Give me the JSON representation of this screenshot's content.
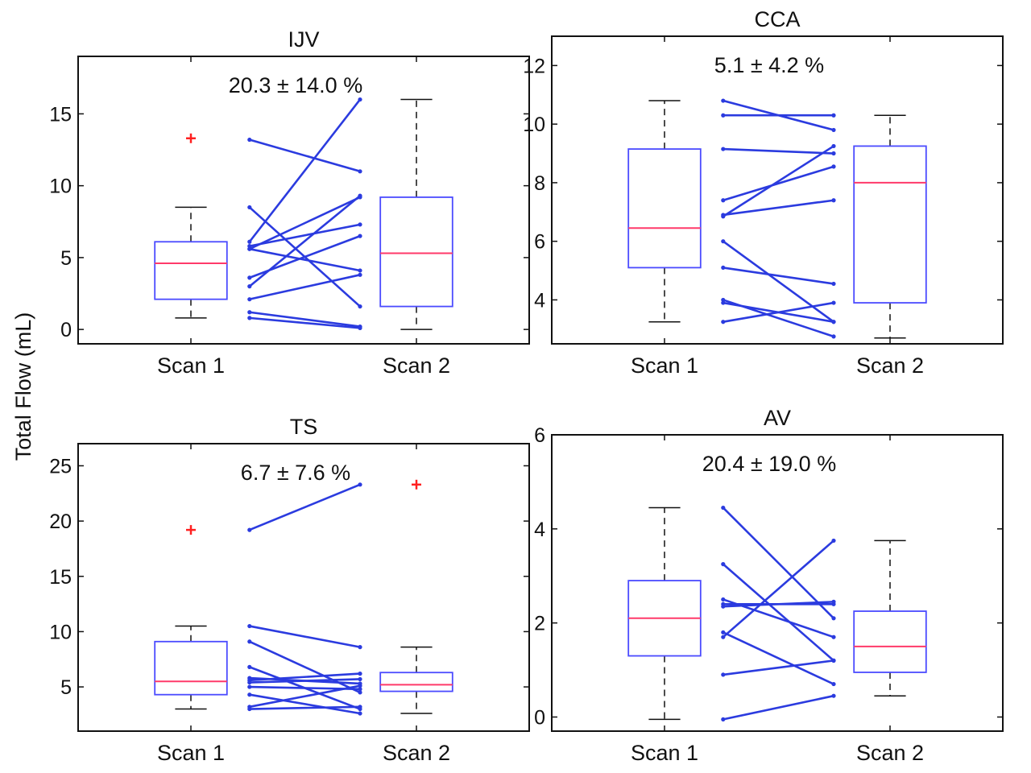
{
  "figure": {
    "ylabel": "Total Flow (mL)"
  },
  "colors": {
    "box": "#4b4bff",
    "median": "#ff3a6a",
    "outlier": "#ff2020",
    "pair_line": "#2b3bdf",
    "whisker": "#111111",
    "axis": "#111111"
  },
  "chart_data": [
    {
      "type": "box",
      "title": "IJV",
      "annotation": "20.3 ± 14.0 %",
      "categories": [
        "Scan 1",
        "Scan 2"
      ],
      "ylim": [
        -1,
        19
      ],
      "yticks": [
        0,
        5,
        10,
        15
      ],
      "boxes": [
        {
          "name": "Scan 1",
          "whisker_low": 0.8,
          "q1": 2.1,
          "median": 4.6,
          "q3": 6.1,
          "whisker_high": 8.5,
          "outliers": [
            13.3
          ]
        },
        {
          "name": "Scan 2",
          "whisker_low": 0.0,
          "q1": 1.6,
          "median": 5.3,
          "q3": 9.2,
          "whisker_high": 16.0,
          "outliers": []
        }
      ],
      "pairs": [
        [
          13.2,
          11.0
        ],
        [
          8.5,
          1.6
        ],
        [
          6.1,
          16.0
        ],
        [
          5.8,
          7.3
        ],
        [
          5.6,
          9.2
        ],
        [
          5.6,
          4.1
        ],
        [
          3.6,
          6.5
        ],
        [
          3.0,
          9.3
        ],
        [
          2.1,
          3.8
        ],
        [
          1.2,
          0.2
        ],
        [
          0.8,
          0.1
        ]
      ]
    },
    {
      "type": "box",
      "title": "CCA",
      "annotation": "5.1 ± 4.2 %",
      "categories": [
        "Scan 1",
        "Scan 2"
      ],
      "ylim": [
        2.5,
        13
      ],
      "yticks": [
        4,
        6,
        8,
        10,
        12
      ],
      "boxes": [
        {
          "name": "Scan 1",
          "whisker_low": 3.25,
          "q1": 5.1,
          "median": 6.45,
          "q3": 9.15,
          "whisker_high": 10.8,
          "outliers": []
        },
        {
          "name": "Scan 2",
          "whisker_low": 2.7,
          "q1": 3.9,
          "median": 8.0,
          "q3": 9.25,
          "whisker_high": 10.3,
          "outliers": []
        }
      ],
      "pairs": [
        [
          10.8,
          9.8
        ],
        [
          10.3,
          10.3
        ],
        [
          9.15,
          9.0
        ],
        [
          7.4,
          8.55
        ],
        [
          6.9,
          7.4
        ],
        [
          6.85,
          9.25
        ],
        [
          6.0,
          3.25
        ],
        [
          5.1,
          4.55
        ],
        [
          4.0,
          2.75
        ],
        [
          3.9,
          3.25
        ],
        [
          3.25,
          3.9
        ]
      ]
    },
    {
      "type": "box",
      "title": "TS",
      "annotation": "6.7 ± 7.6 %",
      "categories": [
        "Scan 1",
        "Scan 2"
      ],
      "ylim": [
        1,
        27
      ],
      "yticks": [
        5,
        10,
        15,
        20,
        25
      ],
      "boxes": [
        {
          "name": "Scan 1",
          "whisker_low": 3.0,
          "q1": 4.3,
          "median": 5.5,
          "q3": 9.1,
          "whisker_high": 10.5,
          "outliers": [
            19.2
          ]
        },
        {
          "name": "Scan 2",
          "whisker_low": 2.6,
          "q1": 4.6,
          "median": 5.2,
          "q3": 6.3,
          "whisker_high": 8.6,
          "outliers": [
            23.3
          ]
        }
      ],
      "pairs": [
        [
          19.2,
          23.3
        ],
        [
          10.5,
          8.6
        ],
        [
          9.1,
          4.5
        ],
        [
          6.8,
          3.0
        ],
        [
          5.8,
          5.3
        ],
        [
          5.6,
          6.2
        ],
        [
          5.4,
          5.7
        ],
        [
          5.0,
          4.8
        ],
        [
          4.3,
          2.6
        ],
        [
          3.2,
          5.1
        ],
        [
          3.0,
          3.2
        ]
      ]
    },
    {
      "type": "box",
      "title": "AV",
      "annotation": "20.4 ± 19.0 %",
      "categories": [
        "Scan 1",
        "Scan 2"
      ],
      "ylim": [
        -0.3,
        6
      ],
      "yticks": [
        0,
        2,
        4,
        6
      ],
      "boxes": [
        {
          "name": "Scan 1",
          "whisker_low": -0.05,
          "q1": 1.3,
          "median": 2.1,
          "q3": 2.9,
          "whisker_high": 4.45,
          "outliers": []
        },
        {
          "name": "Scan 2",
          "whisker_low": 0.45,
          "q1": 0.95,
          "median": 1.5,
          "q3": 2.25,
          "whisker_high": 3.75,
          "outliers": []
        }
      ],
      "pairs": [
        [
          4.45,
          2.1
        ],
        [
          3.25,
          1.2
        ],
        [
          2.5,
          1.7
        ],
        [
          2.4,
          2.4
        ],
        [
          2.35,
          2.45
        ],
        [
          1.8,
          0.7
        ],
        [
          1.7,
          3.75
        ],
        [
          0.9,
          1.2
        ],
        [
          -0.05,
          0.45
        ]
      ]
    }
  ]
}
